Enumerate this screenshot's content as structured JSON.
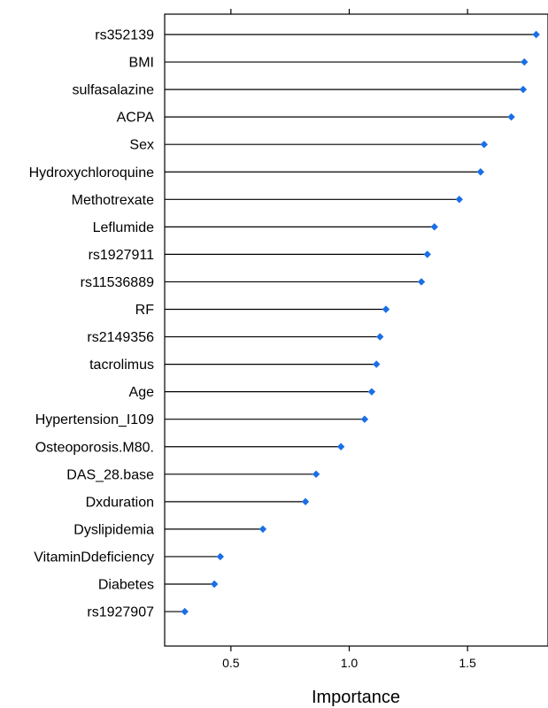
{
  "chart_data": {
    "type": "dot",
    "xlabel": "Importance",
    "xlim": [
      0.22,
      1.84
    ],
    "xticks": [
      0.5,
      1.0,
      1.5
    ],
    "xtick_labels": [
      "0.5",
      "1.0",
      "1.5"
    ],
    "marker_color": "#1a6fe6",
    "categories": [
      "rs352139",
      "BMI",
      "sulfasalazine",
      "ACPA",
      "Sex",
      "Hydroxychloroquine",
      "Methotrexate",
      "Leflumide",
      "rs1927911",
      "rs11536889",
      "RF",
      "rs2149356",
      "tacrolimus",
      "Age",
      "Hypertension_I109",
      "Osteoporosis.M80.",
      "DAS_28.base",
      "Dxduration",
      "Dyslipidemia",
      "VitaminDdeficiency",
      "Diabetes",
      "rs1927907"
    ],
    "values": [
      1.79,
      1.74,
      1.735,
      1.685,
      1.57,
      1.555,
      1.465,
      1.36,
      1.33,
      1.305,
      1.155,
      1.13,
      1.115,
      1.095,
      1.065,
      0.965,
      0.86,
      0.815,
      0.635,
      0.455,
      0.43,
      0.305
    ]
  }
}
